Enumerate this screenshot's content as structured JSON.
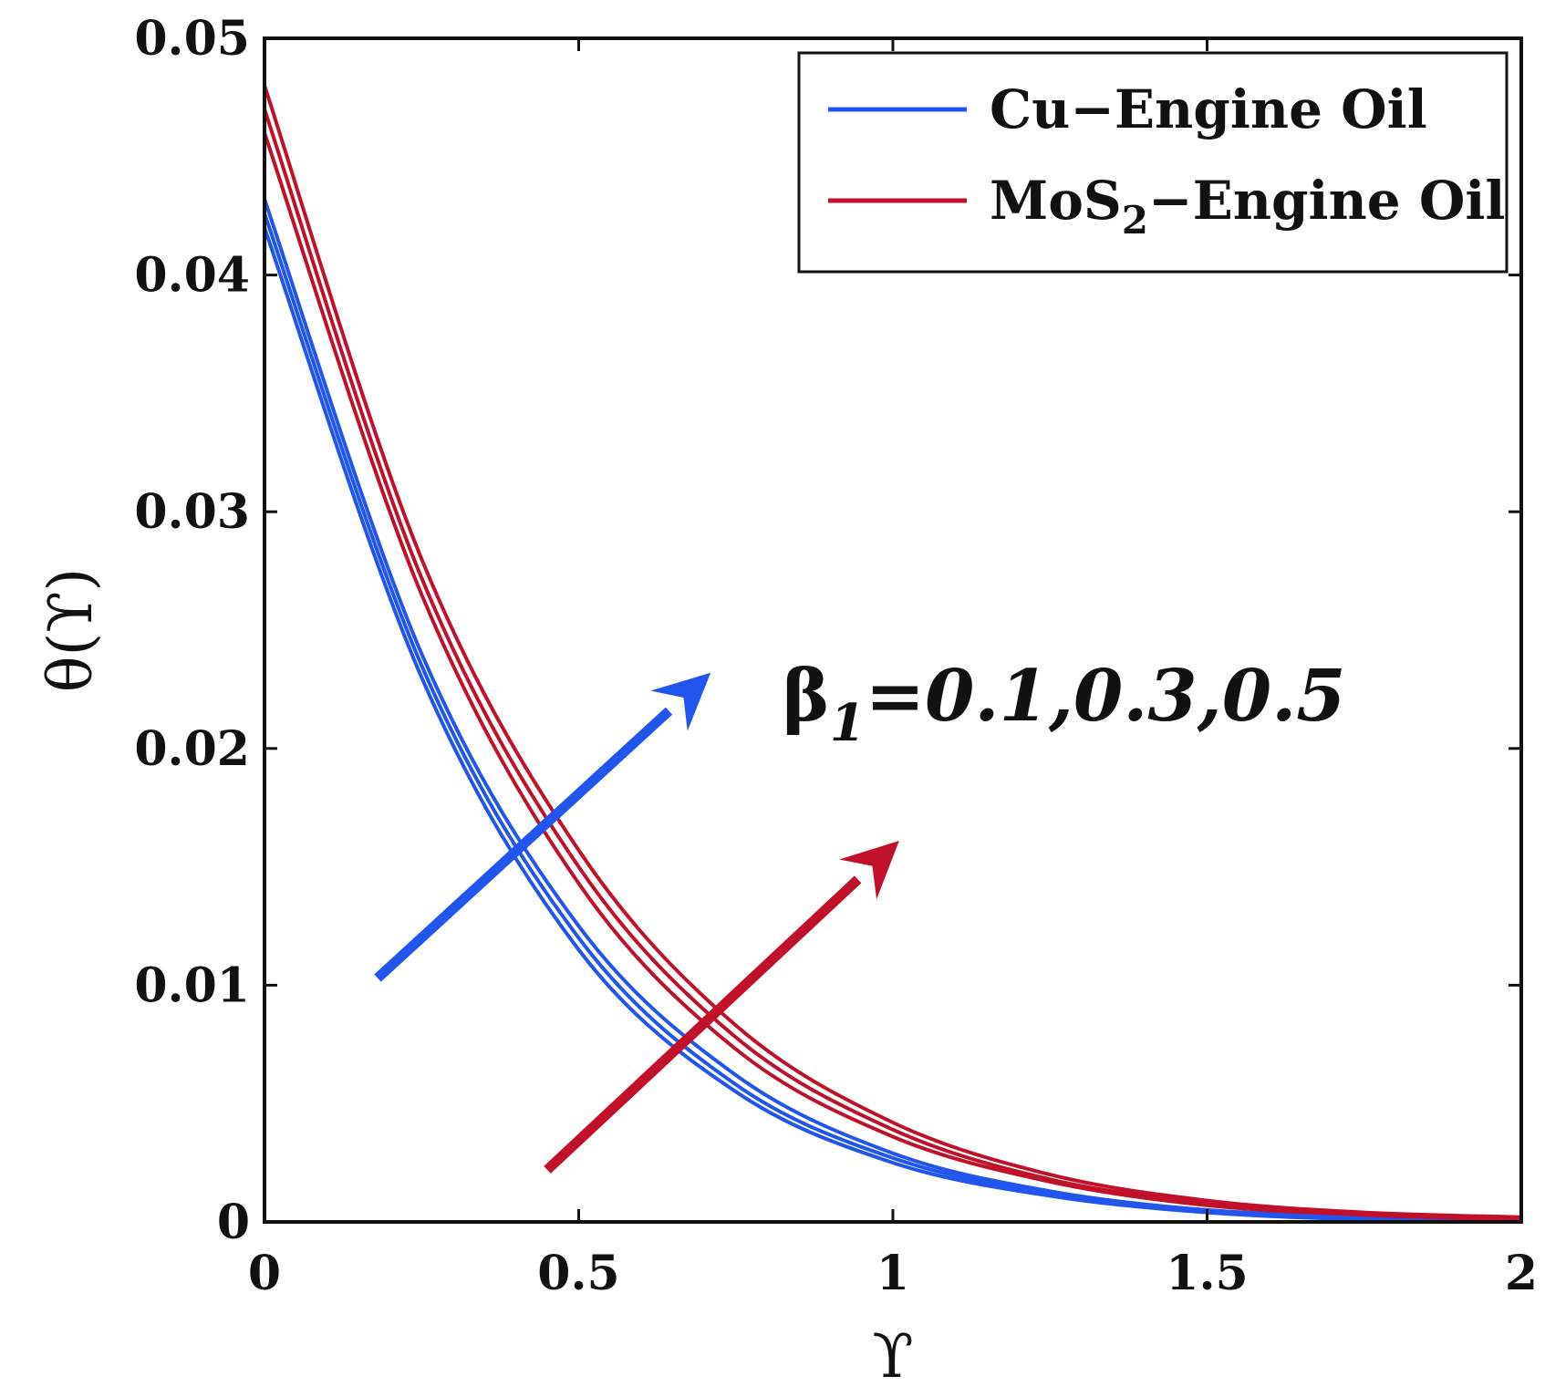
{
  "chart_data": {
    "type": "line",
    "xlabel": "ϒ",
    "ylabel": "θ(ϒ)",
    "xlim": [
      0,
      2
    ],
    "ylim": [
      0,
      0.05
    ],
    "xticks": [
      0,
      0.5,
      1,
      1.5,
      2
    ],
    "xtick_labels": [
      "0",
      "0.5",
      "1",
      "1.5",
      "2"
    ],
    "yticks": [
      0,
      0.01,
      0.02,
      0.03,
      0.04,
      0.05
    ],
    "ytick_labels": [
      "0",
      "0.01",
      "0.02",
      "0.03",
      "0.04",
      "0.05"
    ],
    "x": [
      0,
      0.25,
      0.5,
      0.75,
      1.0,
      1.25,
      1.5,
      1.75,
      2.0
    ],
    "series": [
      {
        "name": "Cu−Engine Oil",
        "group": "Cu",
        "color": "#2255ee",
        "values": [
          0.042,
          0.023,
          0.0115,
          0.0055,
          0.0025,
          0.0011,
          0.0004,
          0.0001,
          0.0
        ]
      },
      {
        "name": "",
        "group": "Cu",
        "color": "#2255ee",
        "values": [
          0.0426,
          0.0235,
          0.012,
          0.0058,
          0.0027,
          0.0012,
          0.0005,
          0.0002,
          0.0
        ]
      },
      {
        "name": "",
        "group": "Cu",
        "color": "#2255ee",
        "values": [
          0.0432,
          0.024,
          0.0125,
          0.0062,
          0.0029,
          0.0013,
          0.0005,
          0.0002,
          0.0001
        ]
      },
      {
        "name": "MoS₂−Engine Oil",
        "group": "MoS2",
        "color": "#c0102a",
        "values": [
          0.046,
          0.0265,
          0.0143,
          0.0073,
          0.0036,
          0.0017,
          0.0007,
          0.0003,
          0.0001
        ]
      },
      {
        "name": "",
        "group": "MoS2",
        "color": "#c0102a",
        "values": [
          0.047,
          0.0272,
          0.015,
          0.0078,
          0.0039,
          0.0018,
          0.0008,
          0.0003,
          0.0001
        ]
      },
      {
        "name": "",
        "group": "MoS2",
        "color": "#c0102a",
        "values": [
          0.048,
          0.028,
          0.0157,
          0.0083,
          0.0042,
          0.002,
          0.0009,
          0.0004,
          0.0002
        ]
      }
    ],
    "legend": {
      "placement": "top-right",
      "entries": [
        {
          "text": "Cu−Engine Oil",
          "color": "#2255ee"
        },
        {
          "main": "MoS",
          "sub": "2",
          "tail": "−Engine Oil",
          "color": "#c0102a"
        }
      ]
    },
    "annotations": [
      {
        "prefix": "β",
        "sub": "1",
        "text": "=0.1,0.3,0.5"
      }
    ],
    "arrows": [
      {
        "color": "#2255ee",
        "from": [
          0.18,
          0.0103
        ],
        "to": [
          0.71,
          0.0232
        ]
      },
      {
        "color": "#c0102a",
        "from": [
          0.45,
          0.0022
        ],
        "to": [
          1.01,
          0.0161
        ]
      }
    ],
    "grid": false
  }
}
